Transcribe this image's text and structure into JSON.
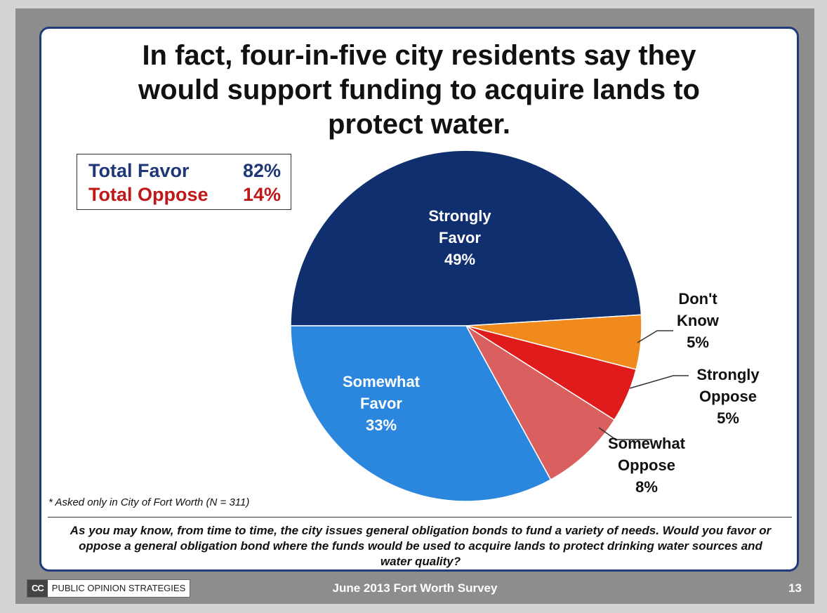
{
  "title": {
    "lines": [
      "In fact, four-in-five city residents say they",
      "would support funding to acquire lands to",
      "protect water."
    ]
  },
  "summary": {
    "favor_label": "Total Favor",
    "favor_value": "82%",
    "oppose_label": "Total Oppose",
    "oppose_value": "14%",
    "favor_color": "#1f3677",
    "oppose_color": "#c01818"
  },
  "chart_data": {
    "type": "pie",
    "slices": [
      {
        "label": [
          "Strongly",
          "Favor",
          "49%"
        ],
        "value": 49,
        "color": "#0f2f6e"
      },
      {
        "label": [
          "Don't",
          "Know",
          "5%"
        ],
        "value": 5,
        "color": "#f08a1c"
      },
      {
        "label": [
          "Strongly",
          "Oppose",
          "5%"
        ],
        "value": 5,
        "color": "#e01b1b"
      },
      {
        "label": [
          "Somewhat",
          "Oppose",
          "8%"
        ],
        "value": 8,
        "color": "#d9605f"
      },
      {
        "label": [
          "Somewhat",
          "Favor",
          "33%"
        ],
        "value": 33,
        "color": "#2b86de"
      }
    ]
  },
  "footnote": "* Asked only in City of Fort Worth (N = 311)",
  "question": "As you may know, from time to time, the city issues general obligation bonds to fund a variety of needs. Would you favor or oppose a general obligation bond where the funds would be used to acquire lands to protect drinking water sources and water quality?",
  "footer": {
    "logo_mark": "CC",
    "logo_text": "PUBLIC OPINION STRATEGIES",
    "center": "June 2013 Fort Worth Survey",
    "page": "13"
  }
}
